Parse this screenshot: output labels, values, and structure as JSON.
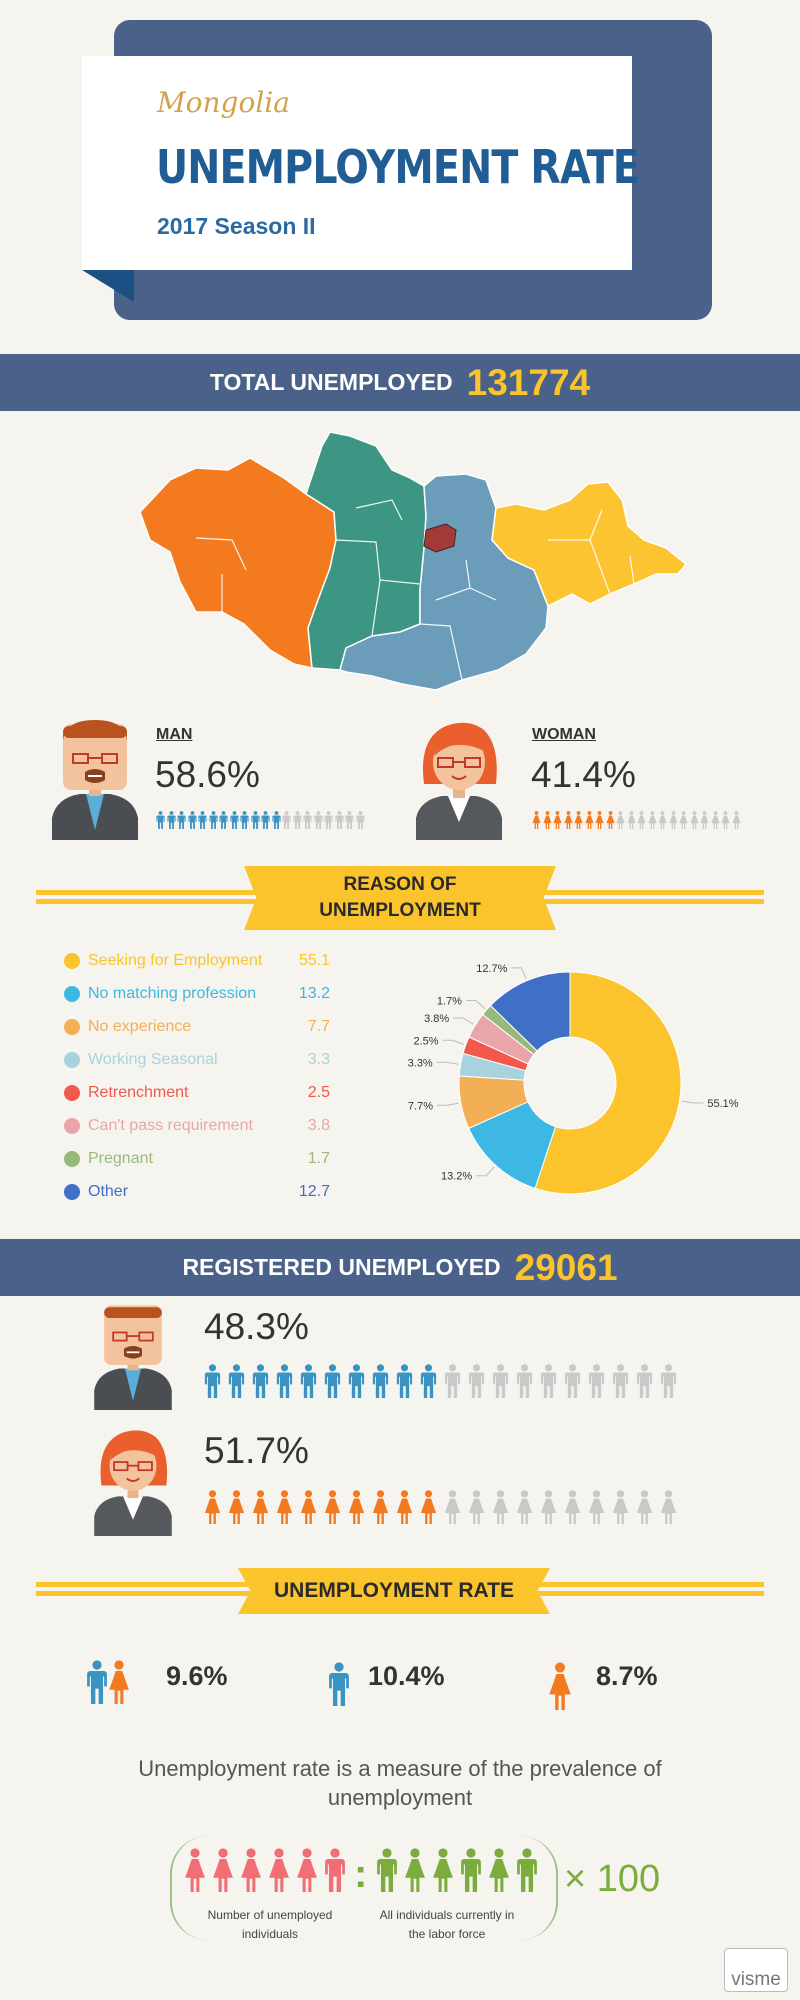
{
  "header": {
    "country": "Mongolia",
    "title": "UNEMPLOYMENT RATE",
    "season": "2017 Season II"
  },
  "total": {
    "label": "TOTAL UNEMPLOYED",
    "value": "131774"
  },
  "map_colors": [
    "#f47a20",
    "#3d9683",
    "#6b9dbb",
    "#fcc430",
    "#a43a38"
  ],
  "gender_total": {
    "man": {
      "label": "MAN",
      "pct": "58.6%",
      "fraction": 0.586,
      "color": "#3a94c3"
    },
    "woman": {
      "label": "WOMAN",
      "pct": "41.4%",
      "fraction": 0.414,
      "color": "#f47a20"
    }
  },
  "reason_section": {
    "title_line1": "REASON OF",
    "title_line2": "UNEMPLOYMENT"
  },
  "reasons": [
    {
      "label": "Seeking for Employment",
      "value": "55.1",
      "pct_label": "55.1%",
      "color": "#fbc42d"
    },
    {
      "label": "No matching profession",
      "value": "13.2",
      "pct_label": "13.2%",
      "color": "#3db7e4"
    },
    {
      "label": "No experience",
      "value": "7.7",
      "pct_label": "7.7%",
      "color": "#f3af56"
    },
    {
      "label": "Working Seasonal",
      "value": "3.3",
      "pct_label": "3.3%",
      "color": "#a7d2de"
    },
    {
      "label": "Retrenchment",
      "value": "2.5",
      "pct_label": "2.5%",
      "color": "#f2584c"
    },
    {
      "label": "Can't pass requirement",
      "value": "3.8",
      "pct_label": "3.8%",
      "color": "#eaa5a8"
    },
    {
      "label": "Pregnant",
      "value": "1.7",
      "pct_label": "1.7%",
      "color": "#99b97c"
    },
    {
      "label": "Other",
      "value": "12.7",
      "pct_label": "12.7%",
      "color": "#3f6fc6"
    }
  ],
  "chart_data": {
    "type": "pie",
    "donut": true,
    "categories": [
      "Seeking for Employment",
      "No matching profession",
      "No experience",
      "Working Seasonal",
      "Retrenchment",
      "Can't pass requirement",
      "Pregnant",
      "Other"
    ],
    "values": [
      55.1,
      13.2,
      7.7,
      3.3,
      2.5,
      3.8,
      1.7,
      12.7
    ],
    "title": "REASON OF UNEMPLOYMENT",
    "legend": "left"
  },
  "registered": {
    "label": "REGISTERED UNEMPLOYED",
    "value": "29061",
    "man": {
      "pct": "48.3%",
      "fraction": 0.483
    },
    "woman": {
      "pct": "51.7%",
      "fraction": 0.517
    }
  },
  "rate_section": {
    "title": "UNEMPLOYMENT RATE"
  },
  "rates": {
    "total": {
      "value": "9.6%",
      "color": "#fbc42d"
    },
    "man": {
      "value": "10.4%",
      "color": "#3f6fc6"
    },
    "woman": {
      "value": "8.7%",
      "color": "#e9942e"
    }
  },
  "definition": {
    "text": "Unemployment rate is a measure of the prevalence of unemployment"
  },
  "formula": {
    "numerator_caption": "Number of unemployed individuals",
    "denominator_caption": "All individuals currently in the labor force",
    "multiplier": "× 100",
    "numerator_color": "#f16e74",
    "denominator_color": "#7dac3e"
  },
  "brand": "visme"
}
